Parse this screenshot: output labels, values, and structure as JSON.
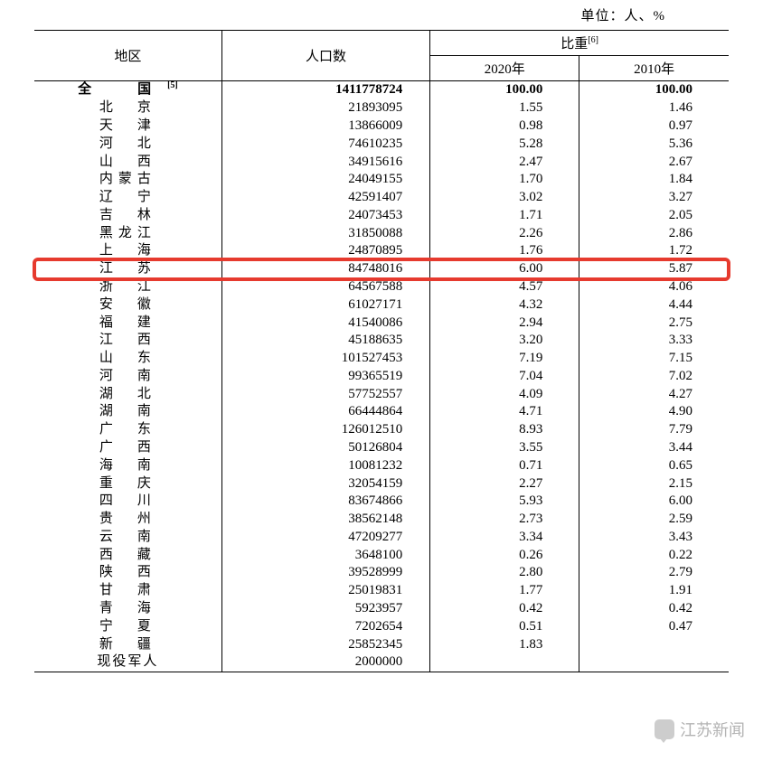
{
  "unit_label": "单位：人、%",
  "headers": {
    "region": "地区",
    "population": "人口数",
    "ratio_group": "比重",
    "ratio_sup": "[6]",
    "y2020": "2020年",
    "y2010": "2010年"
  },
  "national": {
    "region": "全　国",
    "region_sup": "[5]",
    "population": "1411778724",
    "r2020": "100.00",
    "r2010": "100.00"
  },
  "rows": [
    {
      "region": "北　京",
      "population": "21893095",
      "r2020": "1.55",
      "r2010": "1.46"
    },
    {
      "region": "天　津",
      "population": "13866009",
      "r2020": "0.98",
      "r2010": "0.97"
    },
    {
      "region": "河　北",
      "population": "74610235",
      "r2020": "5.28",
      "r2010": "5.36"
    },
    {
      "region": "山　西",
      "population": "34915616",
      "r2020": "2.47",
      "r2010": "2.67"
    },
    {
      "region": "内蒙古",
      "population": "24049155",
      "r2020": "1.70",
      "r2010": "1.84"
    },
    {
      "region": "辽　宁",
      "population": "42591407",
      "r2020": "3.02",
      "r2010": "3.27"
    },
    {
      "region": "吉　林",
      "population": "24073453",
      "r2020": "1.71",
      "r2010": "2.05"
    },
    {
      "region": "黑龙江",
      "population": "31850088",
      "r2020": "2.26",
      "r2010": "2.86"
    },
    {
      "region": "上　海",
      "population": "24870895",
      "r2020": "1.76",
      "r2010": "1.72"
    },
    {
      "region": "江　苏",
      "population": "84748016",
      "r2020": "6.00",
      "r2010": "5.87",
      "highlight": true
    },
    {
      "region": "浙　江",
      "population": "64567588",
      "r2020": "4.57",
      "r2010": "4.06"
    },
    {
      "region": "安　徽",
      "population": "61027171",
      "r2020": "4.32",
      "r2010": "4.44"
    },
    {
      "region": "福　建",
      "population": "41540086",
      "r2020": "2.94",
      "r2010": "2.75"
    },
    {
      "region": "江　西",
      "population": "45188635",
      "r2020": "3.20",
      "r2010": "3.33"
    },
    {
      "region": "山　东",
      "population": "101527453",
      "r2020": "7.19",
      "r2010": "7.15"
    },
    {
      "region": "河　南",
      "population": "99365519",
      "r2020": "7.04",
      "r2010": "7.02"
    },
    {
      "region": "湖　北",
      "population": "57752557",
      "r2020": "4.09",
      "r2010": "4.27"
    },
    {
      "region": "湖　南",
      "population": "66444864",
      "r2020": "4.71",
      "r2010": "4.90"
    },
    {
      "region": "广　东",
      "population": "126012510",
      "r2020": "8.93",
      "r2010": "7.79"
    },
    {
      "region": "广　西",
      "population": "50126804",
      "r2020": "3.55",
      "r2010": "3.44"
    },
    {
      "region": "海　南",
      "population": "10081232",
      "r2020": "0.71",
      "r2010": "0.65"
    },
    {
      "region": "重　庆",
      "population": "32054159",
      "r2020": "2.27",
      "r2010": "2.15"
    },
    {
      "region": "四　川",
      "population": "83674866",
      "r2020": "5.93",
      "r2010": "6.00"
    },
    {
      "region": "贵　州",
      "population": "38562148",
      "r2020": "2.73",
      "r2010": "2.59"
    },
    {
      "region": "云　南",
      "population": "47209277",
      "r2020": "3.34",
      "r2010": "3.43"
    },
    {
      "region": "西　藏",
      "population": "3648100",
      "r2020": "0.26",
      "r2010": "0.22"
    },
    {
      "region": "陕　西",
      "population": "39528999",
      "r2020": "2.80",
      "r2010": "2.79"
    },
    {
      "region": "甘　肃",
      "population": "25019831",
      "r2020": "1.77",
      "r2010": "1.91"
    },
    {
      "region": "青　海",
      "population": "5923957",
      "r2020": "0.42",
      "r2010": "0.42"
    },
    {
      "region": "宁　夏",
      "population": "7202654",
      "r2020": "0.51",
      "r2010": "0.47"
    },
    {
      "region": "新　疆",
      "population": "25852345",
      "r2020": "1.83",
      "r2010": ""
    },
    {
      "region": "现役军人",
      "population": "2000000",
      "r2020": "",
      "r2010": "",
      "narrow": true
    }
  ],
  "highlight_style": {
    "border_color": "#e63a2e",
    "border_width": 4,
    "radius": 6
  },
  "watermark": {
    "text": "江苏新闻"
  },
  "column_widths_pct": [
    27,
    30,
    21.5,
    21.5
  ],
  "colors": {
    "text": "#000000",
    "background": "#ffffff",
    "rule": "#000000",
    "highlight": "#e63a2e",
    "watermark": "#9a9a9a"
  }
}
